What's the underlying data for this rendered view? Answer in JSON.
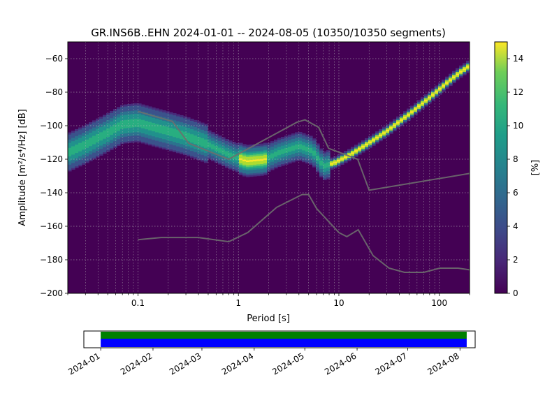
{
  "figure_title": "GR.INS6B..EHN   2024-01-01 -- 2024-08-05  (10350/10350 segments)",
  "chart_data": [
    {
      "type": "heatmap",
      "title": "GR.INS6B..EHN   2024-01-01 -- 2024-08-05  (10350/10350 segments)",
      "xlabel": "Period [s]",
      "ylabel": "Amplitude [m²/s⁴/Hz] [dB]",
      "xscale": "log",
      "xlim": [
        0.02,
        200
      ],
      "ylim": [
        -200,
        -50
      ],
      "xticks": [
        {
          "value": 0.1,
          "label": "0.1"
        },
        {
          "value": 1,
          "label": "1"
        },
        {
          "value": 10,
          "label": "10"
        },
        {
          "value": 100,
          "label": "100"
        }
      ],
      "yticks": [
        -200,
        -180,
        -160,
        -140,
        -120,
        -100,
        -80,
        -60
      ],
      "grid": true,
      "colorbar": {
        "label": "[%]",
        "range": [
          0,
          15
        ],
        "ticks": [
          0,
          2,
          4,
          6,
          8,
          10,
          12,
          14
        ],
        "colormap": "viridis"
      },
      "density_ridge": [
        [
          0.02,
          -116
        ],
        [
          0.03,
          -111
        ],
        [
          0.05,
          -104
        ],
        [
          0.07,
          -99
        ],
        [
          0.1,
          -98
        ],
        [
          0.15,
          -101
        ],
        [
          0.2,
          -103
        ],
        [
          0.3,
          -106
        ],
        [
          0.5,
          -111
        ],
        [
          0.8,
          -117
        ],
        [
          1.2,
          -121
        ],
        [
          1.8,
          -120
        ],
        [
          2.5,
          -116
        ],
        [
          4,
          -112
        ],
        [
          5.5,
          -115
        ],
        [
          7,
          -124
        ],
        [
          9,
          -122
        ],
        [
          13,
          -117
        ],
        [
          20,
          -110
        ],
        [
          30,
          -103
        ],
        [
          50,
          -93
        ],
        [
          80,
          -83
        ],
        [
          120,
          -74
        ],
        [
          160,
          -68
        ],
        [
          200,
          -64
        ]
      ],
      "reference_curves": [
        {
          "name": "",
          "color": "#6e6e6e",
          "points": [
            [
              0.1,
              -91.5
            ],
            [
              0.22,
              -97.4
            ],
            [
              0.32,
              -110.5
            ],
            [
              0.8,
              -120
            ],
            [
              3.8,
              -98
            ],
            [
              4.6,
              -96.5
            ],
            [
              6.3,
              -101
            ],
            [
              7.9,
              -113.5
            ],
            [
              15.4,
              -120
            ],
            [
              20,
              -138.5
            ],
            [
              200,
              -128.5
            ]
          ]
        },
        {
          "name": "",
          "color": "#6e6e6e",
          "points": [
            [
              0.1,
              -168
            ],
            [
              0.17,
              -166.7
            ],
            [
              0.4,
              -166.7
            ],
            [
              0.8,
              -169.2
            ],
            [
              1.24,
              -163.7
            ],
            [
              2.4,
              -148.7
            ],
            [
              4.3,
              -141.1
            ],
            [
              5.0,
              -141.1
            ],
            [
              6.0,
              -149.4
            ],
            [
              10.0,
              -163.8
            ],
            [
              12.0,
              -166.2
            ],
            [
              15.6,
              -162.1
            ],
            [
              21.9,
              -177.5
            ],
            [
              31.6,
              -185
            ],
            [
              45,
              -187.5
            ],
            [
              70,
              -187.5
            ],
            [
              101,
              -185
            ],
            [
              154,
              -185
            ],
            [
              200,
              -186
            ]
          ]
        }
      ]
    },
    {
      "type": "bar",
      "orientation": "horizontal",
      "title": "",
      "xlim": [
        "2023-12-22",
        "2024-08-10"
      ],
      "data_availability": [
        {
          "start": "2024-01-01",
          "end": "2024-08-05",
          "color": "#008000"
        },
        {
          "start": "2024-01-01",
          "end": "2024-08-05",
          "color": "#0000ff"
        }
      ],
      "xticks": [
        "2024-01",
        "2024-02",
        "2024-03",
        "2024-04",
        "2024-05",
        "2024-06",
        "2024-07",
        "2024-08"
      ]
    }
  ]
}
